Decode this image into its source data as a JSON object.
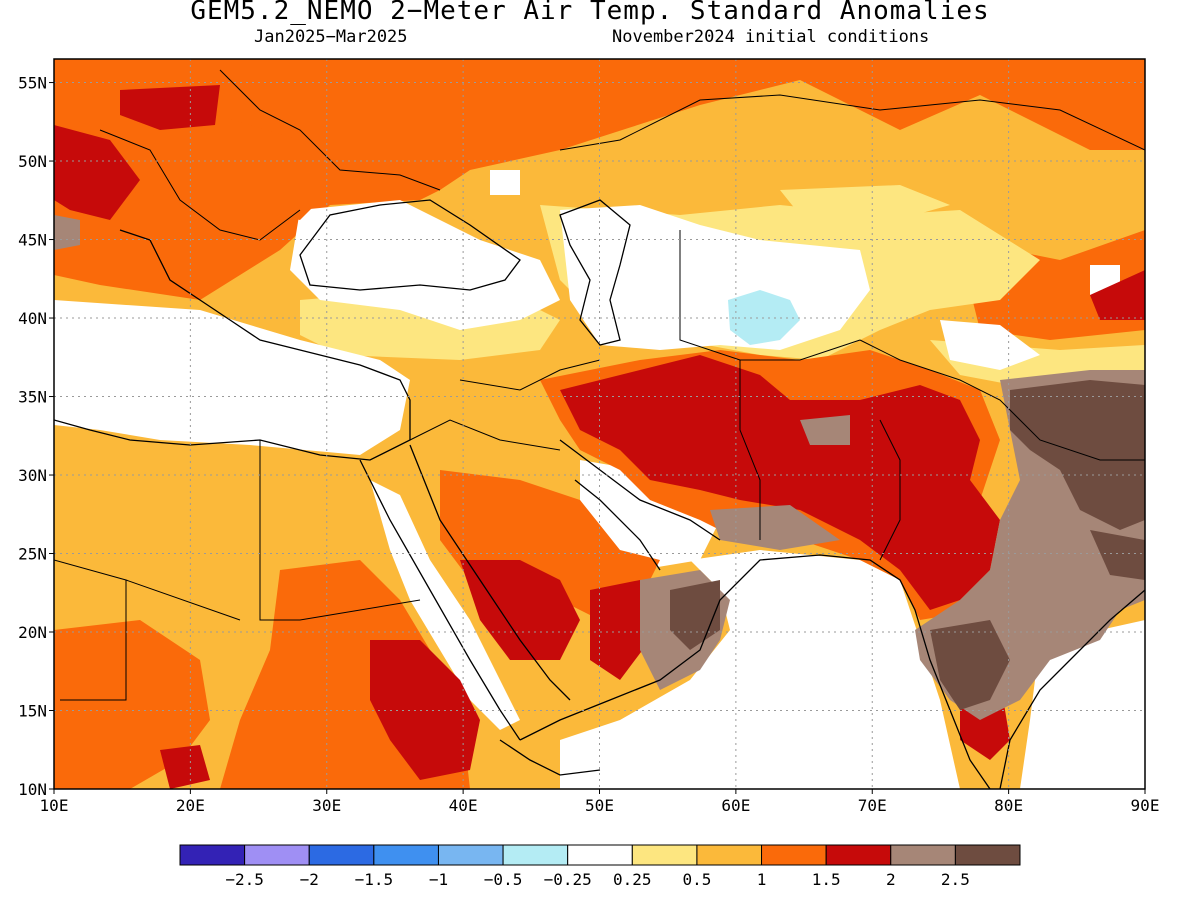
{
  "title": "GEM5.2_NEMO 2−Meter Air Temp. Standard Anomalies",
  "subtitle_left": "Jan2025−Mar2025",
  "subtitle_right": "November2024 initial conditions",
  "lat_labels": [
    "55N",
    "50N",
    "45N",
    "40N",
    "35N",
    "30N",
    "25N",
    "20N",
    "15N",
    "10N"
  ],
  "lat_values": [
    55,
    50,
    45,
    40,
    35,
    30,
    25,
    20,
    15,
    10
  ],
  "lon_labels": [
    "10E",
    "20E",
    "30E",
    "40E",
    "50E",
    "60E",
    "70E",
    "80E",
    "90E"
  ],
  "lon_values": [
    10,
    20,
    30,
    40,
    50,
    60,
    70,
    80,
    90
  ],
  "colorbar": {
    "colors": [
      "#3322b5",
      "#9f8ff4",
      "#2c6ae3",
      "#3f90f0",
      "#78b6f1",
      "#b4ecf4",
      "#ffffff",
      "#fde680",
      "#fbb93a",
      "#fa6a0a",
      "#c60a0a",
      "#a68677",
      "#6e4c40"
    ],
    "labels": [
      "−2.5",
      "−2",
      "−1.5",
      "−1",
      "−0.5",
      "−0.25",
      "0.25",
      "0.5",
      "1",
      "1.5",
      "2",
      "2.5"
    ]
  },
  "map_data": {
    "projection": "lat-lon",
    "lon_range": [
      10,
      90
    ],
    "lat_range": [
      10,
      56.5
    ],
    "grid": "dotted",
    "variable": "2-meter air temperature standard anomaly"
  }
}
